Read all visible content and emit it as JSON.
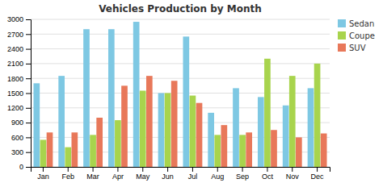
{
  "chart_data": {
    "type": "bar",
    "title": "Vehicles Production by Month",
    "categories": [
      "Jan",
      "Feb",
      "Mar",
      "Apr",
      "May",
      "Jun",
      "Jul",
      "Aug",
      "Sep",
      "Oct",
      "Nov",
      "Dec"
    ],
    "series": [
      {
        "name": "Sedan",
        "color": "#7ec8e3",
        "values": [
          1700,
          1850,
          2800,
          2800,
          2950,
          1500,
          2650,
          1100,
          1600,
          1420,
          1250,
          1600
        ]
      },
      {
        "name": "Coupe",
        "color": "#a8d44d",
        "values": [
          550,
          400,
          650,
          950,
          1550,
          1500,
          1450,
          650,
          650,
          2200,
          1850,
          2100
        ]
      },
      {
        "name": "SUV",
        "color": "#e8785a",
        "values": [
          700,
          700,
          1000,
          1650,
          1850,
          1750,
          1300,
          850,
          700,
          750,
          600,
          680
        ]
      }
    ],
    "ylim": [
      0,
      3000
    ],
    "yticks": [
      0,
      300,
      600,
      900,
      1200,
      1500,
      1800,
      2100,
      2400,
      2700,
      3000
    ],
    "grid": true,
    "legend": "upper right"
  }
}
